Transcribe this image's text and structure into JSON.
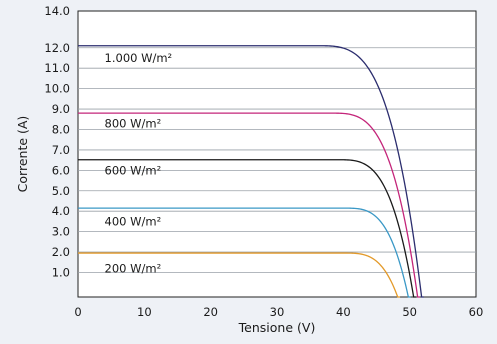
{
  "chart_data": {
    "type": "line",
    "xlabel": "Tensione (V)",
    "ylabel": "Corrente (A)",
    "xlim": [
      0,
      60
    ],
    "ylim": [
      0,
      14
    ],
    "x_ticks": [
      0,
      10,
      20,
      30,
      40,
      50,
      60
    ],
    "y_tick_labels": [
      "14.0",
      "12.0",
      "11.0",
      "10.0",
      "9.0",
      "8.0",
      "7.0",
      "6.0",
      "5.0",
      "4.0",
      "3.0",
      "2.0",
      "1.0"
    ],
    "y_grid": [
      14,
      12.2,
      11.2,
      10.2,
      9.2,
      8.2,
      7.2,
      6.2,
      5.2,
      4.2,
      3.2,
      2.2,
      1.2
    ],
    "grid": "horizontal",
    "series": [
      {
        "name": "1.000 W/m²",
        "color": "#2b2d6e",
        "isc": 12.3,
        "knee_v": 36,
        "voc": 51.8
      },
      {
        "name": "800 W/m²",
        "color": "#c4257a",
        "isc": 9.0,
        "knee_v": 38,
        "voc": 51.2
      },
      {
        "name": "600 W/m²",
        "color": "#1a1a1a",
        "isc": 6.72,
        "knee_v": 39,
        "voc": 50.6
      },
      {
        "name": "400 W/m²",
        "color": "#3a98c6",
        "isc": 4.35,
        "knee_v": 40,
        "voc": 49.8
      },
      {
        "name": "200 W/m²",
        "color": "#e39a2a",
        "isc": 2.15,
        "knee_v": 40,
        "voc": 48.2
      }
    ],
    "label_y_values": [
      11.7,
      8.5,
      6.2,
      3.7,
      1.4
    ],
    "label_x_value": 4
  }
}
